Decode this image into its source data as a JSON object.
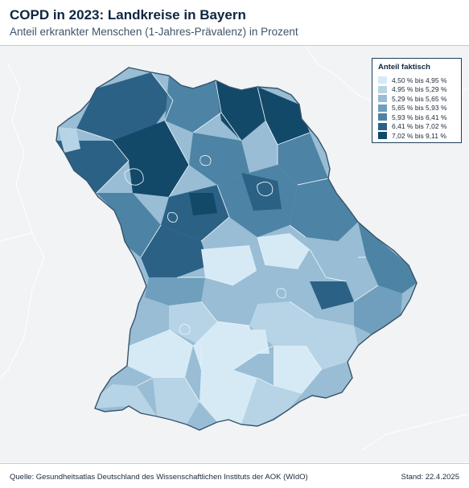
{
  "header": {
    "title": "COPD in 2023: Landkreise in Bayern",
    "subtitle": "Anteil erkrankter Menschen (1-Jahres-Prävalenz) in Prozent"
  },
  "legend": {
    "title": "Anteil faktisch",
    "classes": [
      {
        "label": "4,50 % bis 4,95 %",
        "color": "#d6eaf6"
      },
      {
        "label": "4,95 % bis 5,29 %",
        "color": "#b7d4e6"
      },
      {
        "label": "5,29 % bis 5,65 %",
        "color": "#98bdd4"
      },
      {
        "label": "5,65 % bis 5,93 %",
        "color": "#6f9fbc"
      },
      {
        "label": "5,93 % bis 6,41 %",
        "color": "#4d83a4"
      },
      {
        "label": "6,41 % bis 7,02 %",
        "color": "#2b6184"
      },
      {
        "label": "7,02 % bis 9,11 %",
        "color": "#124868"
      }
    ]
  },
  "footer": {
    "source": "Quelle: Gesundheitsatlas Deutschland des Wissenschaftlichen Instituts der AOK (WIdO)",
    "stand": "Stand: 22.4.2025"
  }
}
